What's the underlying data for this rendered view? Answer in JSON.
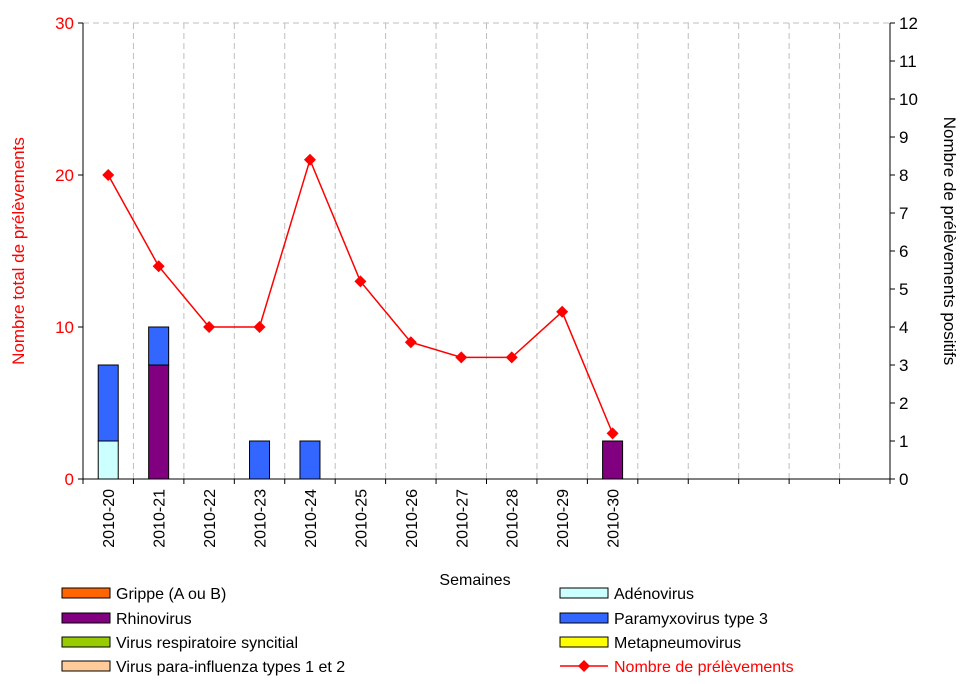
{
  "colors": {
    "line": "#ff0000",
    "axis": "#000000",
    "grid": "#bfbfbf",
    "left_axis_label": "#ff0000"
  },
  "chart_data": {
    "type": "bar",
    "xlabel": "Semaines",
    "ylabel_left": "Nombre total de prélèvements",
    "ylabel_right": "Nombre de prélèvements positifs",
    "ylim_left": [
      0,
      30
    ],
    "ylim_right": [
      0,
      12
    ],
    "yticks_left": [
      0,
      10,
      20,
      30
    ],
    "yticks_right": [
      0,
      1,
      2,
      3,
      4,
      5,
      6,
      7,
      8,
      9,
      10,
      11,
      12
    ],
    "category_slots": 16,
    "categories": [
      "2010-20",
      "2010-21",
      "2010-22",
      "2010-23",
      "2010-24",
      "2010-25",
      "2010-26",
      "2010-27",
      "2010-28",
      "2010-29",
      "2010-30"
    ],
    "grid": true,
    "legend_position": "bottom",
    "bar_series": [
      {
        "name": "Grippe (A ou B)",
        "color": "#ff6600",
        "values": [
          0,
          0,
          0,
          0,
          0,
          0,
          0,
          0,
          0,
          0,
          0
        ]
      },
      {
        "name": "Adénovirus",
        "color": "#ccffff",
        "values": [
          1,
          0,
          0,
          0,
          0,
          0,
          0,
          0,
          0,
          0,
          0
        ]
      },
      {
        "name": "Rhinovirus",
        "color": "#800080",
        "values": [
          0,
          3,
          0,
          0,
          0,
          0,
          0,
          0,
          0,
          0,
          1
        ]
      },
      {
        "name": "Paramyxovirus type 3",
        "color": "#3366ff",
        "values": [
          2,
          1,
          0,
          1,
          1,
          0,
          0,
          0,
          0,
          0,
          0
        ]
      },
      {
        "name": "Virus respiratoire syncitial",
        "color": "#99cc00",
        "values": [
          0,
          0,
          0,
          0,
          0,
          0,
          0,
          0,
          0,
          0,
          0
        ]
      },
      {
        "name": "Metapneumovirus",
        "color": "#ffff00",
        "values": [
          0,
          0,
          0,
          0,
          0,
          0,
          0,
          0,
          0,
          0,
          0
        ]
      },
      {
        "name": "Virus para-influenza types 1 et 2",
        "color": "#ffcc99",
        "values": [
          0,
          0,
          0,
          0,
          0,
          0,
          0,
          0,
          0,
          0,
          0
        ]
      }
    ],
    "line_series": {
      "name": "Nombre de prélèvements",
      "color": "#ff0000",
      "axis": "left",
      "values": [
        20,
        14,
        10,
        10,
        21,
        13,
        9,
        8,
        8,
        11,
        3
      ]
    }
  }
}
